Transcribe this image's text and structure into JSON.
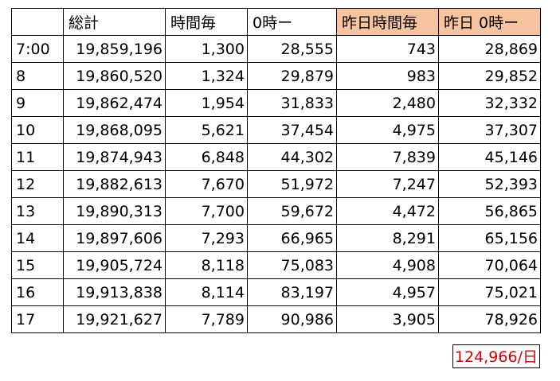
{
  "table": {
    "headers": [
      "",
      "総計",
      "時間毎",
      "0時ー",
      "昨日時間毎",
      "昨日 0時ー"
    ],
    "highlight_color": "#f8c4a0",
    "rows": [
      [
        "7:00",
        "19,859,196",
        "1,300",
        "28,555",
        "743",
        "28,869"
      ],
      [
        "8",
        "19,860,520",
        "1,324",
        "29,879",
        "983",
        "29,852"
      ],
      [
        "9",
        "19,862,474",
        "1,954",
        "31,833",
        "2,480",
        "32,332"
      ],
      [
        "10",
        "19,868,095",
        "5,621",
        "37,454",
        "4,975",
        "37,307"
      ],
      [
        "11",
        "19,874,943",
        "6,848",
        "44,302",
        "7,839",
        "45,146"
      ],
      [
        "12",
        "19,882,613",
        "7,670",
        "51,972",
        "7,247",
        "52,393"
      ],
      [
        "13",
        "19,890,313",
        "7,700",
        "59,672",
        "4,472",
        "56,865"
      ],
      [
        "14",
        "19,897,606",
        "7,293",
        "66,965",
        "8,291",
        "65,156"
      ],
      [
        "15",
        "19,905,724",
        "8,118",
        "75,083",
        "4,908",
        "70,064"
      ],
      [
        "16",
        "19,913,838",
        "8,114",
        "83,197",
        "4,957",
        "75,021"
      ],
      [
        "17",
        "19,921,627",
        "7,789",
        "90,986",
        "3,905",
        "78,926"
      ]
    ]
  },
  "daily_total": {
    "text": "124,966/日",
    "color": "#d40000"
  }
}
